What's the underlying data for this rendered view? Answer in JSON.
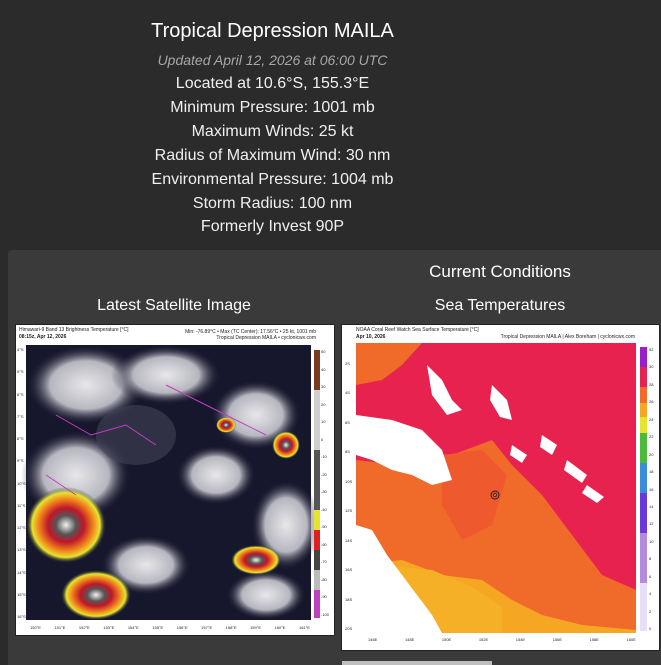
{
  "storm": {
    "title": "Tropical Depression MAILA",
    "updated": "Updated April 12, 2026 at 06:00 UTC",
    "location": "Located at 10.6°S, 155.3°E",
    "min_pressure": "Minimum Pressure: 1001 mb",
    "max_winds": "Maximum Winds: 25 kt",
    "rmw": "Radius of Maximum Wind: 30 nm",
    "env_pressure": "Environmental Pressure: 1004 mb",
    "storm_radius": "Storm Radius: 100 nm",
    "formerly": "Formerly Invest 90P"
  },
  "panel": {
    "heading": "Current Conditions",
    "satellite_caption": "Latest Satellite Image",
    "sst_caption": "Sea Temperatures"
  },
  "satellite_image": {
    "header_left": "Himawari-9 Band 13 Brightness Temperature [°C]",
    "header_date": "08:15z, Apr 12, 2026",
    "header_right": "Min: -76.89°C • Max (TC Center): 17.56°C • 25 kt, 1001 mb",
    "header_right2": "Tropical Depression MAILA • cyclonicwx.com",
    "colorbar_ticks": [
      "50",
      "40",
      "30",
      "20",
      "10",
      "0",
      "-10",
      "-20",
      "-30",
      "-40",
      "-50",
      "-60",
      "-70",
      "-80",
      "-90",
      "-100"
    ],
    "lat_labels": [
      "4°S",
      "5°S",
      "6°S",
      "7°S",
      "8°S",
      "9°S",
      "10°S",
      "11°S",
      "12°S",
      "13°S",
      "14°S",
      "15°S",
      "16°S"
    ],
    "lon_labels": [
      "150°E",
      "151°E",
      "152°E",
      "153°E",
      "154°E",
      "155°E",
      "156°E",
      "157°E",
      "158°E",
      "159°E",
      "160°E",
      "161°E"
    ]
  },
  "sst_image": {
    "header_left": "NOAA Coral Reef Watch Sea Surface Temperature [°C]",
    "header_date": "Apr 10, 2026",
    "header_right": "Tropical Depression MAILA | Alex Boreham | cyclonicwx.com",
    "colorbar_ticks": [
      "32",
      "30",
      "28",
      "26",
      "24",
      "22",
      "20",
      "18",
      "16",
      "14",
      "12",
      "10",
      "8",
      "6",
      "4",
      "2",
      "0"
    ],
    "lat_labels": [
      "2S",
      "4S",
      "6S",
      "8S",
      "10S",
      "12S",
      "14S",
      "16S",
      "18S",
      "20S"
    ],
    "lon_labels": [
      "146E",
      "148E",
      "150E",
      "152E",
      "154E",
      "156E",
      "158E",
      "160E"
    ]
  },
  "colors": {
    "background": "#2b2b2b",
    "panel": "#3a3a3a",
    "sst_hot": "#e8224f",
    "sst_warm": "#f06a2a",
    "sst_mid": "#f5a623",
    "sat_deep": "#141428"
  }
}
